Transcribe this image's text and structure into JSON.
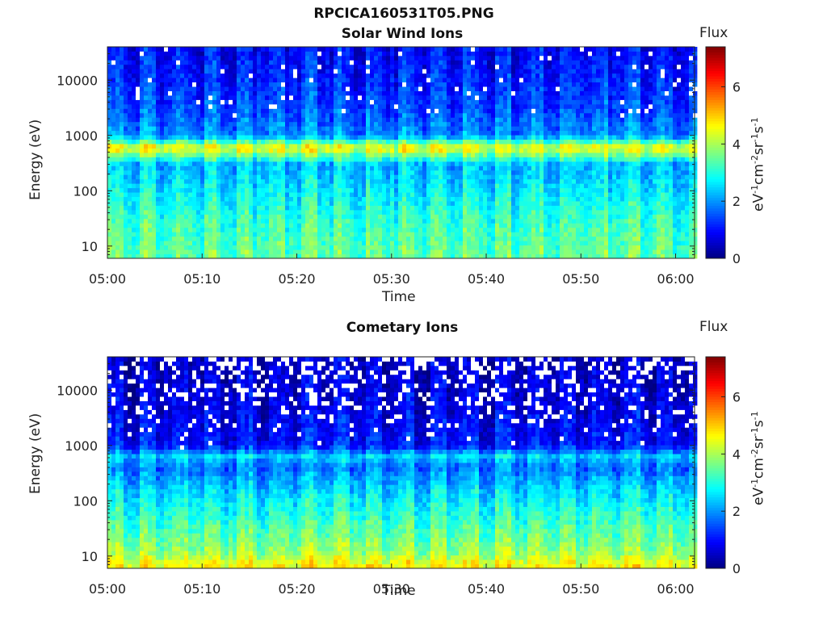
{
  "figure_title": "RPCICA160531T05.PNG",
  "colors": {
    "colormap": "jet",
    "missing": "#ffffff",
    "axis": "#222222"
  },
  "chart_data": [
    {
      "type": "heatmap",
      "title": "Solar Wind Ions",
      "xlabel": "Time",
      "ylabel": "Energy (eV)",
      "x_ticks": [
        "05:00",
        "05:10",
        "05:20",
        "05:30",
        "05:40",
        "05:50",
        "06:00"
      ],
      "y_ticks": [
        "10",
        "100",
        "1000",
        "10000"
      ],
      "y_scale": "log",
      "ylim": [
        6,
        40000
      ],
      "xlim": [
        "05:00",
        "06:02"
      ],
      "colorbar": {
        "title": "Flux",
        "label_base": [
          "eV",
          "cm",
          "sr",
          "s"
        ],
        "label_exp": [
          "-1",
          "-2",
          "-1",
          "-1"
        ],
        "ticks": [
          "0",
          "2",
          "4",
          "6"
        ],
        "range": [
          0,
          7.4
        ]
      },
      "profile": [
        {
          "energy": 8,
          "flux": 3.4
        },
        {
          "energy": 30,
          "flux": 3.1
        },
        {
          "energy": 100,
          "flux": 2.6
        },
        {
          "energy": 300,
          "flux": 2.2
        },
        {
          "energy": 600,
          "flux": 4.6
        },
        {
          "energy": 1000,
          "flux": 1.9
        },
        {
          "energy": 3000,
          "flux": 1.4
        },
        {
          "energy": 10000,
          "flux": 1.1
        },
        {
          "energy": 40000,
          "flux": 0.9
        }
      ],
      "peak_energy": 650
    },
    {
      "type": "heatmap",
      "title": "Cometary Ions",
      "xlabel": "Time",
      "ylabel": "Energy (eV)",
      "x_ticks": [
        "05:00",
        "05:10",
        "05:20",
        "05:30",
        "05:40",
        "05:50",
        "06:00"
      ],
      "y_ticks": [
        "10",
        "100",
        "1000",
        "10000"
      ],
      "y_scale": "log",
      "ylim": [
        6,
        40000
      ],
      "xlim": [
        "05:00",
        "06:02"
      ],
      "colorbar": {
        "title": "Flux",
        "label_base": [
          "eV",
          "cm",
          "sr",
          "s"
        ],
        "label_exp": [
          "-1",
          "-2",
          "-1",
          "-1"
        ],
        "ticks": [
          "0",
          "2",
          "4",
          "6"
        ],
        "range": [
          0,
          7.4
        ]
      },
      "profile": [
        {
          "energy": 7,
          "flux": 4.6
        },
        {
          "energy": 12,
          "flux": 3.8
        },
        {
          "energy": 40,
          "flux": 3.2
        },
        {
          "energy": 150,
          "flux": 2.5
        },
        {
          "energy": 400,
          "flux": 1.7
        },
        {
          "energy": 650,
          "flux": 2.4
        },
        {
          "energy": 1000,
          "flux": 1.0
        },
        {
          "energy": 5000,
          "flux": 0.7
        },
        {
          "energy": 40000,
          "flux": 0.5
        }
      ],
      "peak_energy": 650
    }
  ]
}
